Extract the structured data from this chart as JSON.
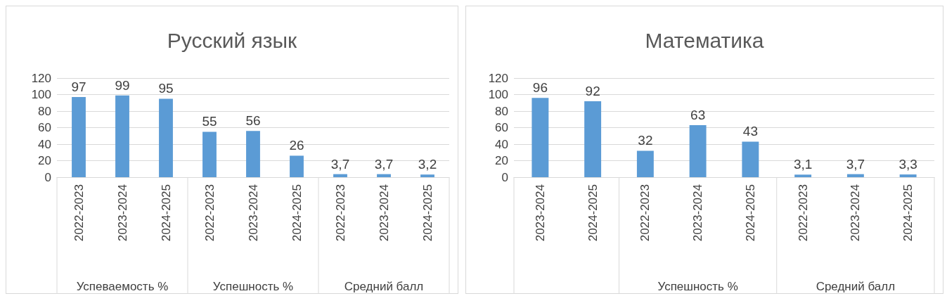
{
  "chart_data": [
    {
      "type": "bar",
      "title": "Русский язык",
      "categories": [
        "2022-2023",
        "2023-2024",
        "2024-2025",
        "2022-2023",
        "2023-2024",
        "2024-2025",
        "2022-2023",
        "2023-2024",
        "2024-2025"
      ],
      "series": [
        {
          "color": "#5b9bd5",
          "values": [
            97,
            99,
            95,
            null,
            null,
            null,
            null,
            null,
            null
          ],
          "value_labels": [
            "97",
            "99",
            "95",
            null,
            null,
            null,
            null,
            null,
            null
          ]
        },
        {
          "color": "#5b9bd5",
          "values": [
            null,
            null,
            null,
            55,
            56,
            26,
            null,
            null,
            null
          ],
          "value_labels": [
            null,
            null,
            null,
            "55",
            "56",
            "26",
            null,
            null,
            null
          ]
        },
        {
          "color": "#5b9bd5",
          "values": [
            null,
            null,
            null,
            null,
            null,
            null,
            3.7,
            3.7,
            3.2
          ],
          "value_labels": [
            null,
            null,
            null,
            null,
            null,
            null,
            "3,7",
            "3,7",
            "3,2"
          ]
        }
      ],
      "annotations": [
        "Успеваемость %",
        "Успешность %",
        "Средний балл"
      ],
      "ylim": [
        0,
        120
      ],
      "yticks": [
        0,
        20,
        40,
        60,
        80,
        100,
        120
      ],
      "grid": "y"
    },
    {
      "type": "bar",
      "title": "Математика",
      "categories": [
        "2023-2024",
        "2024-2025",
        "2022-2023",
        "2023-2024",
        "2024-2025",
        "2022-2023",
        "2023-2024",
        "2024-2025"
      ],
      "series": [
        {
          "color": "#5b9bd5",
          "values": [
            96,
            92,
            null,
            null,
            null,
            null,
            null,
            null
          ],
          "value_labels": [
            "96",
            "92",
            null,
            null,
            null,
            null,
            null,
            null
          ]
        },
        {
          "color": "#5b9bd5",
          "values": [
            null,
            null,
            32,
            63,
            43,
            null,
            null,
            null
          ],
          "value_labels": [
            null,
            null,
            "32",
            "63",
            "43",
            null,
            null,
            null
          ]
        },
        {
          "color": "#5b9bd5",
          "values": [
            null,
            null,
            null,
            null,
            null,
            3.1,
            3.7,
            3.3
          ],
          "value_labels": [
            null,
            null,
            null,
            null,
            null,
            "3,1",
            "3,7",
            "3,3"
          ]
        }
      ],
      "annotations": [
        "Успешность %",
        "Средний балл"
      ],
      "ylim": [
        0,
        120
      ],
      "yticks": [
        0,
        20,
        40,
        60,
        80,
        100,
        120
      ],
      "grid": "y"
    }
  ]
}
